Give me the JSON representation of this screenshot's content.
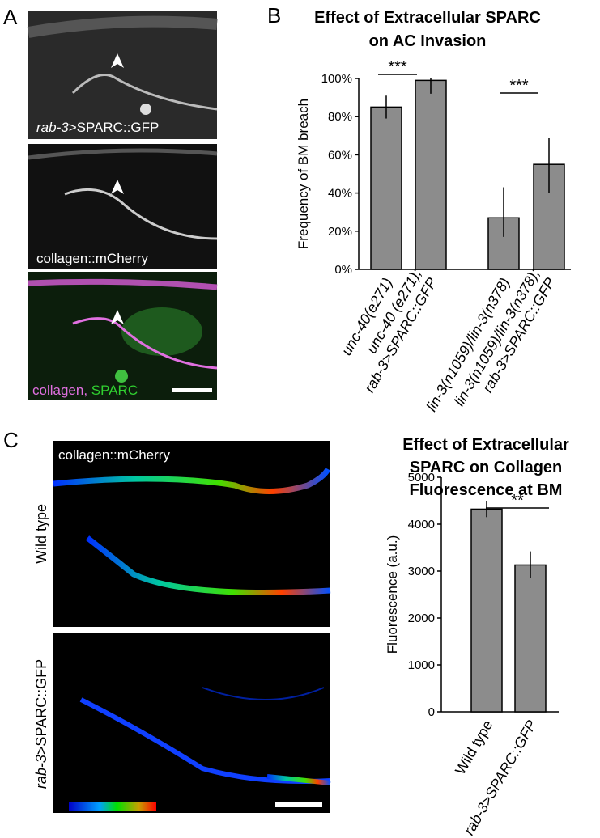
{
  "panels": {
    "a": {
      "label": "A",
      "captions": [
        [
          "rab-3",
          ">SPARC::GFP"
        ],
        [
          "collagen::mCherry"
        ],
        [
          "collagen,",
          "SPARC"
        ]
      ]
    },
    "b": {
      "label": "B"
    },
    "c": {
      "label": "C",
      "image_caption": "collagen::mCherry",
      "row_labels": [
        [
          "Wild type"
        ],
        [
          "rab-3",
          ">SPARC::GFP"
        ]
      ]
    }
  },
  "chart_data": [
    {
      "type": "bar",
      "title": [
        "Effect of Extracellular SPARC",
        "on AC Invasion"
      ],
      "y_label": "Frequency of BM breach",
      "categories": [
        [
          "unc-40(e271)"
        ],
        [
          "unc-40 (e271);",
          "rab-3>SPARC::GFP"
        ],
        [
          "lin-3(n1059)/lin-3(n378)"
        ],
        [
          "lin-3(n1059)/lin-3(n378);",
          "rab-3>SPARC::GFP"
        ]
      ],
      "values": [
        85,
        99,
        27,
        55
      ],
      "error_bars": [
        [
          79,
          91
        ],
        [
          92,
          100
        ],
        [
          17,
          43
        ],
        [
          40,
          69
        ]
      ],
      "color": "#8c8c8c",
      "ylim": [
        0,
        100
      ],
      "yticks": [
        {
          "value": 0,
          "label": "0%"
        },
        {
          "value": 20,
          "label": "20%"
        },
        {
          "value": 40,
          "label": "40%"
        },
        {
          "value": 60,
          "label": "60%"
        },
        {
          "value": 80,
          "label": "80%"
        },
        {
          "value": 100,
          "label": "100%"
        }
      ],
      "annotations": [
        "***",
        "***"
      ]
    },
    {
      "type": "bar",
      "title": [
        "Effect of Extracellular",
        "SPARC on Collagen",
        "Fluorescence at BM"
      ],
      "y_label": "Fluorescence (a.u.)",
      "categories": [
        [
          "Wild type"
        ],
        [
          "rab-3>SPARC::GFP"
        ]
      ],
      "values": [
        4320,
        3130
      ],
      "error_bars": [
        [
          4150,
          4500
        ],
        [
          2850,
          3420
        ]
      ],
      "color": "#8c8c8c",
      "ylim": [
        0,
        5000
      ],
      "yticks": [
        0,
        1000,
        2000,
        3000,
        4000,
        5000
      ],
      "annotations": [
        "**"
      ]
    }
  ]
}
